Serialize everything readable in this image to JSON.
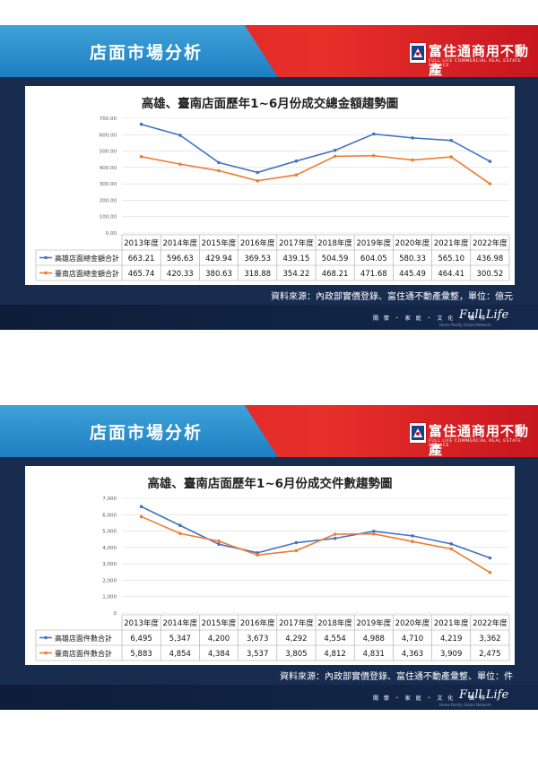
{
  "header": {
    "title": "店面市場分析",
    "brand": "富住通商用不動產",
    "brand_sub": "FULL LIFE COMMERCIAL REAL ESTATE SERVICE"
  },
  "footer": {
    "slogan": "關 懷 ・ 家 庭 ・ 文 化 ・ 團 隊",
    "logo": "Full Life",
    "logo_sub": "Home Realty Global Network"
  },
  "icons": {
    "logo": "full-life-logo-icon"
  },
  "colors": {
    "kaohsiung": "#4472c4",
    "tainan": "#ed7d31",
    "header_red": "#d6202a",
    "header_blue": "#2389cd",
    "background": "#182c50"
  },
  "chart_data": [
    {
      "type": "line",
      "title": "高雄、臺南店面歷年1~6月份成交總金額趨勢圖",
      "categories": [
        "2013年度",
        "2014年度",
        "2015年度",
        "2016年度",
        "2017年度",
        "2018年度",
        "2019年度",
        "2020年度",
        "2021年度",
        "2022年度"
      ],
      "series": [
        {
          "name": "高雄店面總金額合計",
          "values": [
            663.21,
            596.63,
            429.94,
            369.53,
            439.15,
            504.59,
            604.05,
            580.33,
            565.1,
            436.98
          ],
          "labels": [
            "663.21",
            "596.63",
            "429.94",
            "369.53",
            "439.15",
            "504.59",
            "604.05",
            "580.33",
            "565.10",
            "436.98"
          ]
        },
        {
          "name": "臺南店面總金額合計",
          "values": [
            465.74,
            420.33,
            380.63,
            318.88,
            354.22,
            468.21,
            471.68,
            445.49,
            464.41,
            300.52
          ],
          "labels": [
            "465.74",
            "420.33",
            "380.63",
            "318.88",
            "354.22",
            "468.21",
            "471.68",
            "445.49",
            "464.41",
            "300.52"
          ]
        }
      ],
      "ylim": [
        0,
        700
      ],
      "yticks": [
        0,
        100,
        200,
        300,
        400,
        500,
        600,
        700
      ],
      "ytick_labels": [
        "0.00",
        "100.00",
        "200.00",
        "300.00",
        "400.00",
        "500.00",
        "600.00",
        "700.00"
      ],
      "grid": true,
      "legend": "data-table",
      "source": "資料來源：內政部實價登錄、富住通不動產彙整，單位：億元"
    },
    {
      "type": "line",
      "title": "高雄、臺南店面歷年1~6月份成交件數趨勢圖",
      "categories": [
        "2013年度",
        "2014年度",
        "2015年度",
        "2016年度",
        "2017年度",
        "2018年度",
        "2019年度",
        "2020年度",
        "2021年度",
        "2022年度"
      ],
      "series": [
        {
          "name": "高雄店面件數合計",
          "values": [
            6495,
            5347,
            4200,
            3673,
            4292,
            4554,
            4988,
            4710,
            4219,
            3362
          ],
          "labels": [
            "6,495",
            "5,347",
            "4,200",
            "3,673",
            "4,292",
            "4,554",
            "4,988",
            "4,710",
            "4,219",
            "3,362"
          ]
        },
        {
          "name": "臺南店面件數合計",
          "values": [
            5883,
            4854,
            4384,
            3537,
            3805,
            4812,
            4831,
            4363,
            3909,
            2475
          ],
          "labels": [
            "5,883",
            "4,854",
            "4,384",
            "3,537",
            "3,805",
            "4,812",
            "4,831",
            "4,363",
            "3,909",
            "2,475"
          ]
        }
      ],
      "ylim": [
        0,
        7000
      ],
      "yticks": [
        0,
        1000,
        2000,
        3000,
        4000,
        5000,
        6000,
        7000
      ],
      "ytick_labels": [
        "0",
        "1,000",
        "2,000",
        "3,000",
        "4,000",
        "5,000",
        "6,000",
        "7,000"
      ],
      "grid": true,
      "legend": "data-table",
      "source": "資料來源：內政部實價登錄、富住通不動產彙整、單位：件"
    }
  ]
}
